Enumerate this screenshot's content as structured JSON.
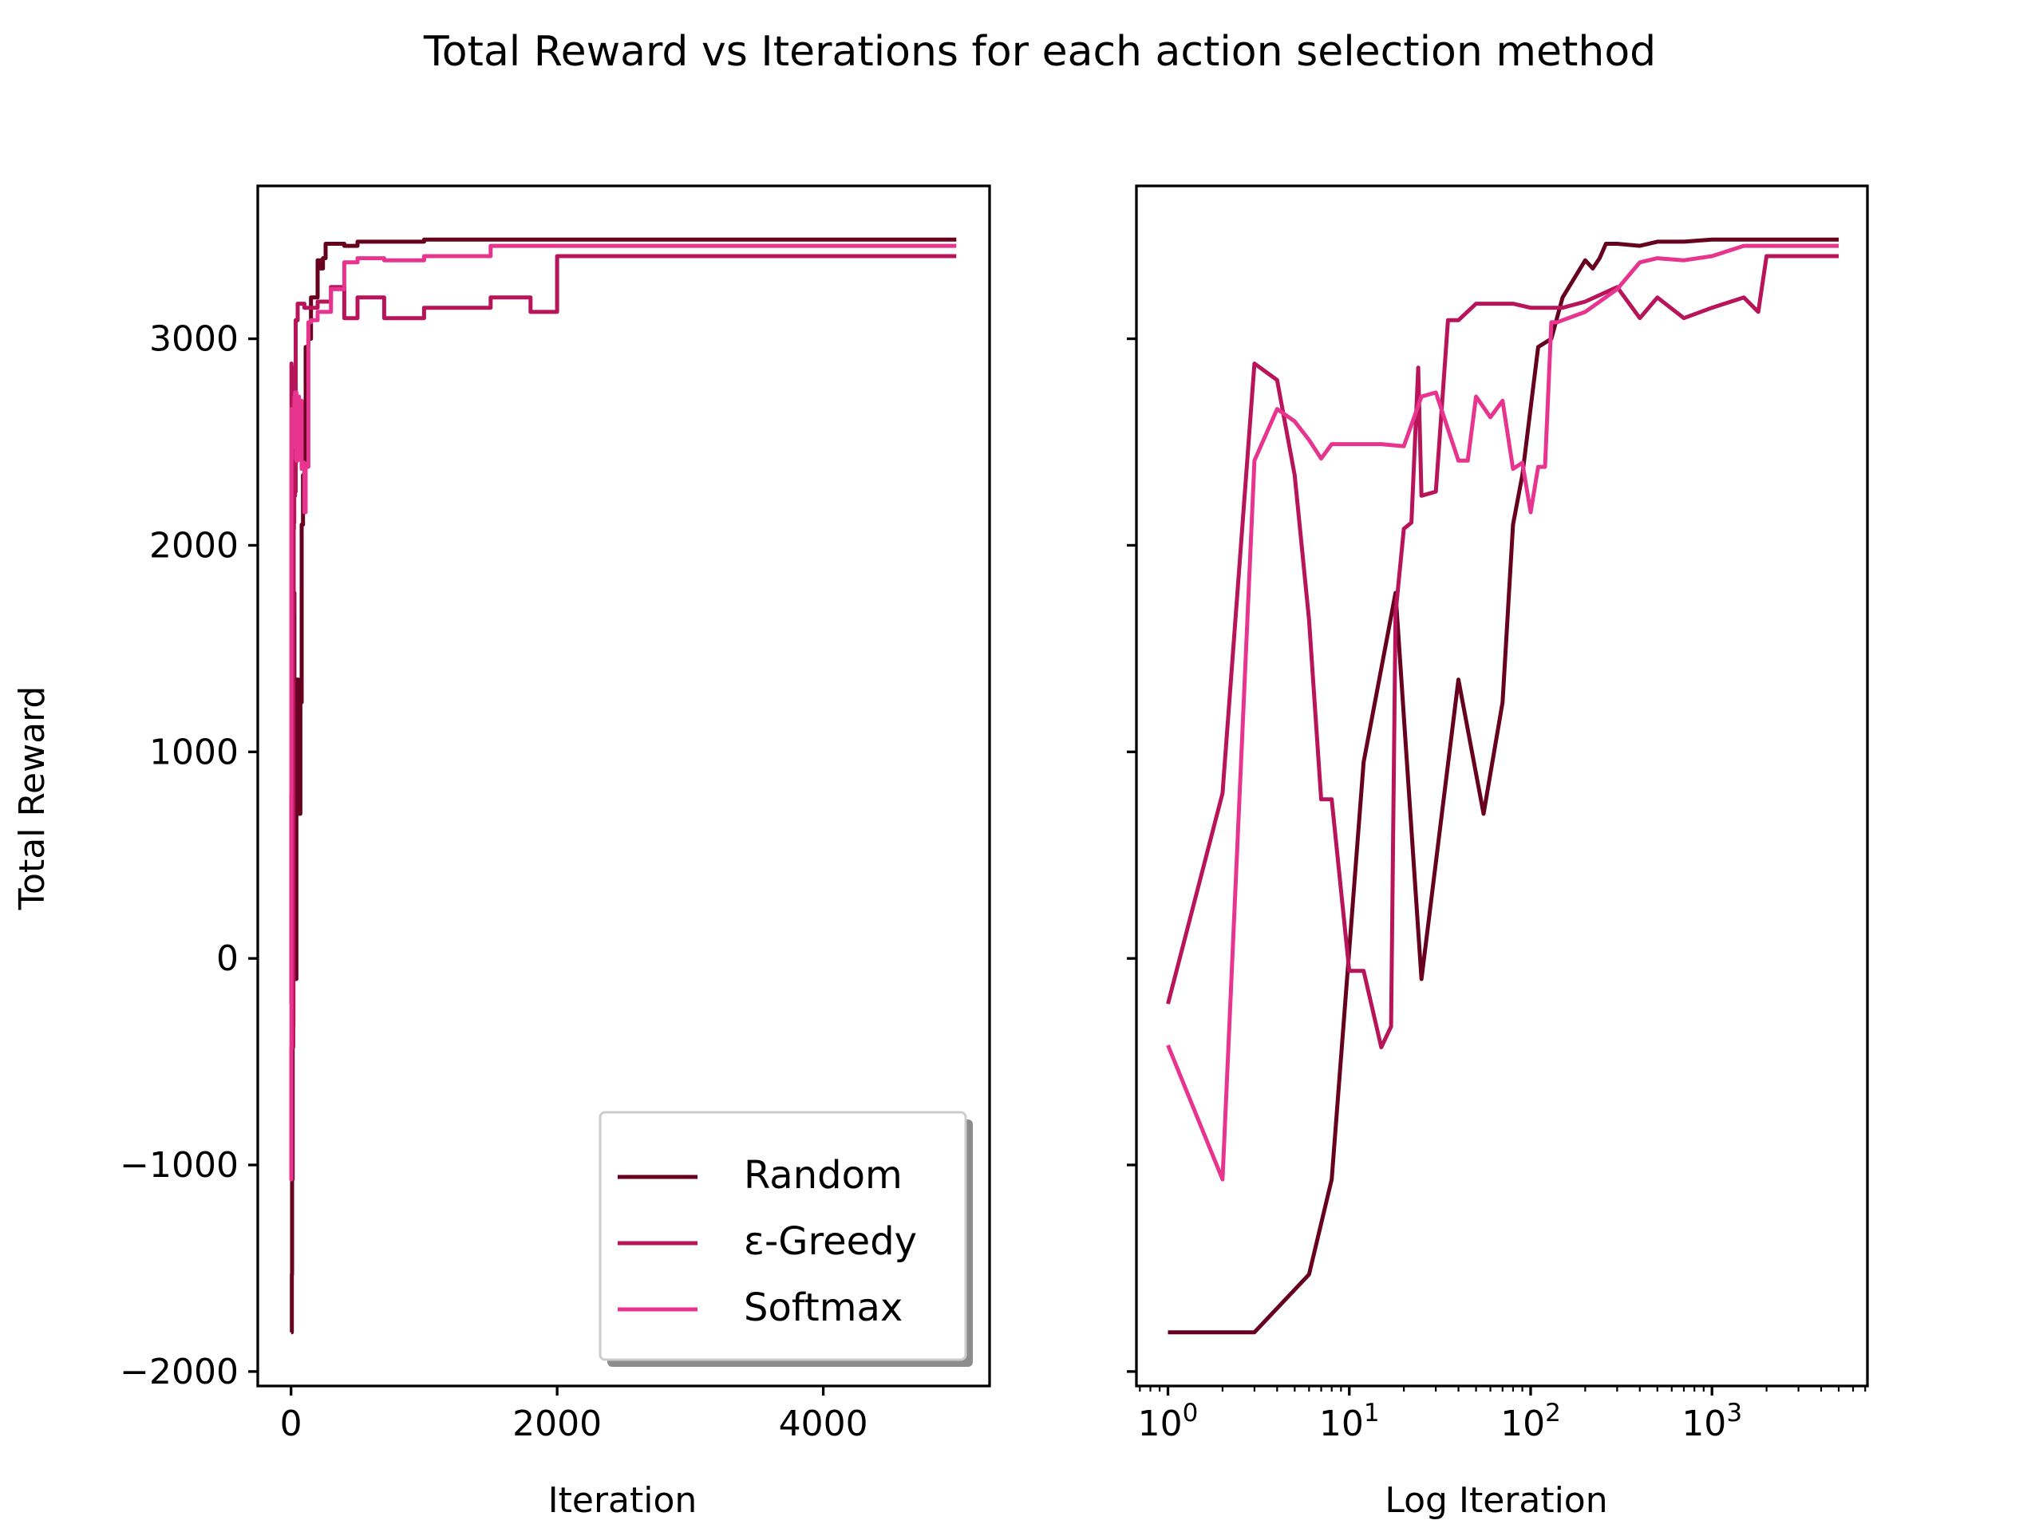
{
  "figure_title": "Total Reward vs Iterations for each action selection method",
  "colors": {
    "random": "#67001f",
    "egreedy": "#b8145a",
    "softmax": "#e7358f"
  },
  "chart_data": [
    {
      "type": "line",
      "xscale": "linear",
      "title": "",
      "xlabel": "Iteration",
      "ylabel": "Total Reward",
      "xlim": [
        -250,
        5250
      ],
      "ylim": [
        -2070,
        3740
      ],
      "xticks": [
        0,
        2000,
        4000
      ],
      "xtick_labels": [
        "0",
        "2000",
        "4000"
      ],
      "yticks": [
        -2000,
        -1000,
        0,
        1000,
        2000,
        3000
      ],
      "ytick_labels": [
        "−2000",
        "−1000",
        "0",
        "1000",
        "2000",
        "3000"
      ],
      "grid": false,
      "legend": {
        "position": "bottom-right",
        "entries": [
          "Random",
          "ε-Greedy",
          "Softmax"
        ]
      },
      "series": [
        {
          "name": "Random",
          "color": "#67001f",
          "x": [
            1,
            3,
            6,
            8,
            12,
            18,
            25,
            40,
            55,
            70,
            80,
            90,
            110,
            130,
            150,
            200,
            220,
            240,
            260,
            300,
            400,
            500,
            700,
            1000,
            1500,
            2000,
            3000,
            4000,
            5000
          ],
          "y": [
            -1810,
            -1810,
            -1530,
            -1070,
            950,
            1770,
            -100,
            1350,
            700,
            1240,
            2100,
            2340,
            2960,
            3000,
            3200,
            3380,
            3340,
            3390,
            3460,
            3460,
            3450,
            3470,
            3470,
            3480,
            3480,
            3480,
            3480,
            3480,
            3480
          ]
        },
        {
          "name": "ε-Greedy",
          "color": "#b8145a",
          "x": [
            1,
            2,
            3,
            4,
            5,
            6,
            7,
            8,
            10,
            12,
            15,
            17,
            18,
            20,
            22,
            24,
            25,
            30,
            35,
            40,
            50,
            60,
            80,
            100,
            150,
            200,
            300,
            400,
            500,
            700,
            1000,
            1500,
            1800,
            2000,
            3000,
            4000,
            5000
          ],
          "y": [
            -220,
            800,
            2880,
            2800,
            2340,
            1640,
            770,
            770,
            -60,
            -60,
            -430,
            -330,
            1670,
            2080,
            2110,
            2860,
            2240,
            2260,
            3090,
            3090,
            3170,
            3170,
            3170,
            3150,
            3150,
            3180,
            3250,
            3100,
            3200,
            3100,
            3150,
            3200,
            3130,
            3400,
            3400,
            3400,
            3400
          ]
        },
        {
          "name": "Softmax",
          "color": "#e7358f",
          "x": [
            1,
            2,
            3,
            4,
            5,
            6,
            7,
            8,
            10,
            15,
            20,
            25,
            30,
            40,
            45,
            50,
            60,
            70,
            80,
            90,
            100,
            110,
            120,
            130,
            140,
            150,
            200,
            300,
            400,
            500,
            700,
            1000,
            1500,
            2000,
            3000,
            4000,
            5000
          ],
          "y": [
            -420,
            -1070,
            2410,
            2660,
            2600,
            2510,
            2420,
            2490,
            2490,
            2490,
            2480,
            2720,
            2740,
            2410,
            2410,
            2720,
            2620,
            2700,
            2370,
            2400,
            2160,
            2380,
            2380,
            3080,
            3080,
            3090,
            3130,
            3240,
            3370,
            3390,
            3380,
            3400,
            3450,
            3450,
            3450,
            3450,
            3450
          ]
        }
      ]
    },
    {
      "type": "line",
      "xscale": "log",
      "title": "",
      "xlabel": "Log Iteration",
      "ylabel": "",
      "xlim": [
        0.67,
        7200
      ],
      "ylim": [
        -2070,
        3740
      ],
      "xticks": [
        1,
        10,
        100,
        1000
      ],
      "xtick_labels": [
        {
          "base": "10",
          "exp": "0"
        },
        {
          "base": "10",
          "exp": "1"
        },
        {
          "base": "10",
          "exp": "2"
        },
        {
          "base": "10",
          "exp": "3"
        }
      ],
      "yticks": [
        -2000,
        -1000,
        0,
        1000,
        2000,
        3000
      ],
      "ytick_labels": [],
      "grid": false,
      "series_ref": [
        "Random",
        "ε-Greedy",
        "Softmax"
      ]
    }
  ]
}
